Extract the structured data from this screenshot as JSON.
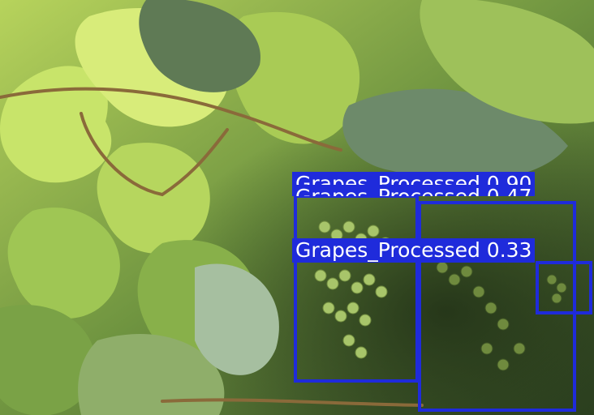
{
  "image": {
    "description_icon": "grapevine-photo"
  },
  "detections": [
    {
      "label": "Grapes_Processed",
      "score": "0.90",
      "color": "#1f2bdb"
    },
    {
      "label": "Grapes_Processed",
      "score": "0.47",
      "color": "#1f2bdb"
    },
    {
      "label": "Grapes_Processed",
      "score": "0.33",
      "color": "#1f2bdb"
    }
  ]
}
